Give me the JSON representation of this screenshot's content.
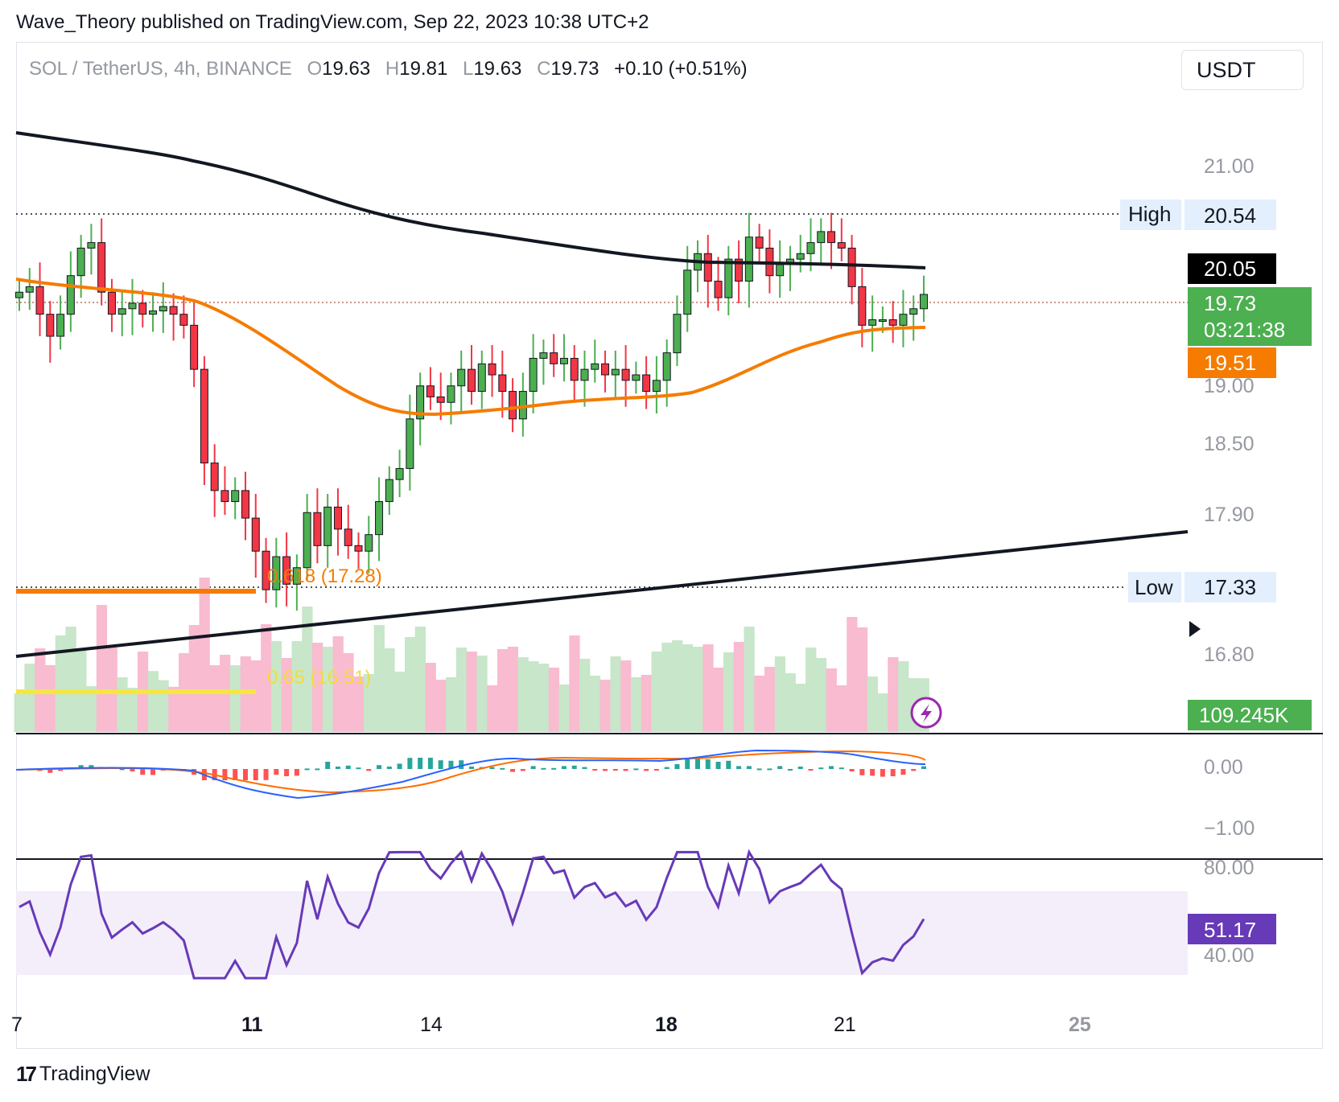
{
  "header": {
    "published_line": "Wave_Theory published on TradingView.com, Sep 22, 2023 10:38 UTC+2"
  },
  "legend": {
    "symbol": "SOL / TetherUS, 4h, BINANCE",
    "o_key": "O",
    "o_val": "19.63",
    "h_key": "H",
    "h_val": "19.81",
    "l_key": "L",
    "l_val": "19.63",
    "c_key": "C",
    "c_val": "19.73",
    "change": "+0.10 (+0.51%)"
  },
  "currency_button": "USDT",
  "brand": {
    "logo": "17",
    "name": "TradingView"
  },
  "colors": {
    "bull": "#26a69a",
    "bull_candle": "#4caf50",
    "bear_candle": "#f23645",
    "ema_fast": "#f57c00",
    "ema_slow": "#131722",
    "rsi": "#673ab7",
    "macd": "#2962ff",
    "signal": "#ff6d00",
    "price_tag": "#4caf50",
    "volume_up": "#c8e6c9",
    "volume_down": "#f8bbd0"
  },
  "chart_data": {
    "type": "candlestick",
    "price_axis_ticks": [
      "21.00",
      "19.00",
      "18.50",
      "17.90",
      "16.80"
    ],
    "price_axis_hidden": [
      {
        "value": 20.54
      },
      {
        "value": 17.33
      }
    ],
    "x_axis_ticks": [
      "7",
      "11",
      "14",
      "18",
      "21",
      "25"
    ],
    "markers": {
      "high_label": "High",
      "high_value": "20.54",
      "low_label": "Low",
      "low_value": "17.33",
      "ema200_value": "20.05",
      "last_price": "19.73",
      "countdown": "03:21:38",
      "ema50_value": "19.51",
      "volume_value": "109.245K"
    },
    "fib_levels": [
      {
        "label": "0.618 (17.28)",
        "value": 17.28
      },
      {
        "label": "0.65 (16.51)",
        "value": 16.51
      }
    ],
    "macd": {
      "axis_ticks": [
        "0.00",
        "−1.00"
      ]
    },
    "rsi": {
      "axis_ticks": [
        "80.00",
        "40.00"
      ],
      "value": "51.17"
    },
    "close_series": [
      19.75,
      19.8,
      19.55,
      19.35,
      19.55,
      19.9,
      20.15,
      20.2,
      19.75,
      19.55,
      19.6,
      19.65,
      19.55,
      19.58,
      19.62,
      19.55,
      19.45,
      19.05,
      18.2,
      17.95,
      17.85,
      17.95,
      17.7,
      17.4,
      17.05,
      17.35,
      17.1,
      17.25,
      17.75,
      17.45,
      17.8,
      17.6,
      17.45,
      17.4,
      17.55,
      17.85,
      18.05,
      18.15,
      18.6,
      18.9,
      18.8,
      18.75,
      18.9,
      19.05,
      18.85,
      19.1,
      19.0,
      18.85,
      18.6,
      18.85,
      19.15,
      19.2,
      19.1,
      19.15,
      18.95,
      19.05,
      19.1,
      19.0,
      19.05,
      18.95,
      19.0,
      18.85,
      18.95,
      19.2,
      19.55,
      19.95,
      20.1,
      19.85,
      19.7,
      20.05,
      19.85,
      20.25,
      20.15,
      19.9,
      20.0,
      20.05,
      20.1,
      20.2,
      20.3,
      20.2,
      20.15,
      19.8,
      19.45,
      19.5,
      19.5,
      19.45,
      19.55,
      19.6,
      19.73
    ]
  }
}
